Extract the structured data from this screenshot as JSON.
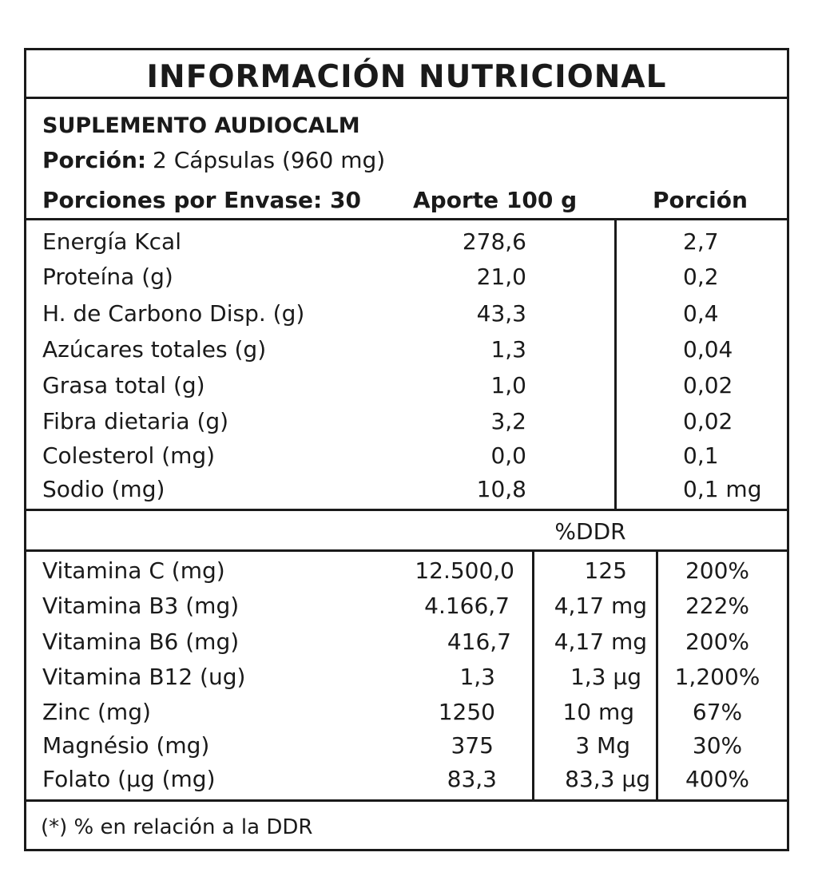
{
  "title": "INFORMACIÓN NUTRICIONAL",
  "product": "SUPLEMENTO AUDIOCALM",
  "serving_label": "Porción:",
  "serving_value": "2 Cápsulas (960 mg)",
  "servings_per_container": "Porciones por Envase: 30",
  "col_per100": "Aporte 100 g",
  "col_portion": "Porción",
  "nutrients": [
    {
      "name": "Energía Kcal",
      "per100": "278,6",
      "portion": "2,7"
    },
    {
      "name": "Proteína (g)",
      "per100": "21,0",
      "portion": "0,2"
    },
    {
      "name": "H. de Carbono Disp. (g)",
      "per100": "43,3",
      "portion": "0,4"
    },
    {
      "name": "Azúcares totales (g)",
      "per100": "1,3",
      "portion": "0,04"
    },
    {
      "name": "Grasa total (g)",
      "per100": "1,0",
      "portion": "0,02"
    },
    {
      "name": "Fibra dietaria (g)",
      "per100": "3,2",
      "portion": "0,02"
    },
    {
      "name": "Colesterol (mg)",
      "per100": "0,0",
      "portion": "0,1"
    },
    {
      "name": "Sodio (mg)",
      "per100": "10,8",
      "portion": "0,1 mg"
    }
  ],
  "ddr_header": "%DDR",
  "vitamins": [
    {
      "name": "Vitamina C (mg)",
      "per100": "12.500,0",
      "portion": "125",
      "ddr": "200%"
    },
    {
      "name": "Vitamina B3 (mg)",
      "per100": "4.166,7",
      "portion": "4,17 mg",
      "ddr": "222%"
    },
    {
      "name": "Vitamina B6 (mg)",
      "per100": "416,7",
      "portion": "4,17 mg",
      "ddr": "200%"
    },
    {
      "name": "Vitamina B12 (ug)",
      "per100": "1,3",
      "portion": "1,3 µg",
      "ddr": "1,200%"
    },
    {
      "name": "Zinc (mg)",
      "per100": "1250",
      "portion": "10 mg",
      "ddr": "67%"
    },
    {
      "name": "Magnésio (mg)",
      "per100": "375",
      "portion": "3 Mg",
      "ddr": "30%"
    },
    {
      "name": "Folato (µg (mg)",
      "per100": "83,3",
      "portion": "83,3 µg",
      "ddr": "400%"
    }
  ],
  "footnote": "(*) % en relación a la DDR"
}
